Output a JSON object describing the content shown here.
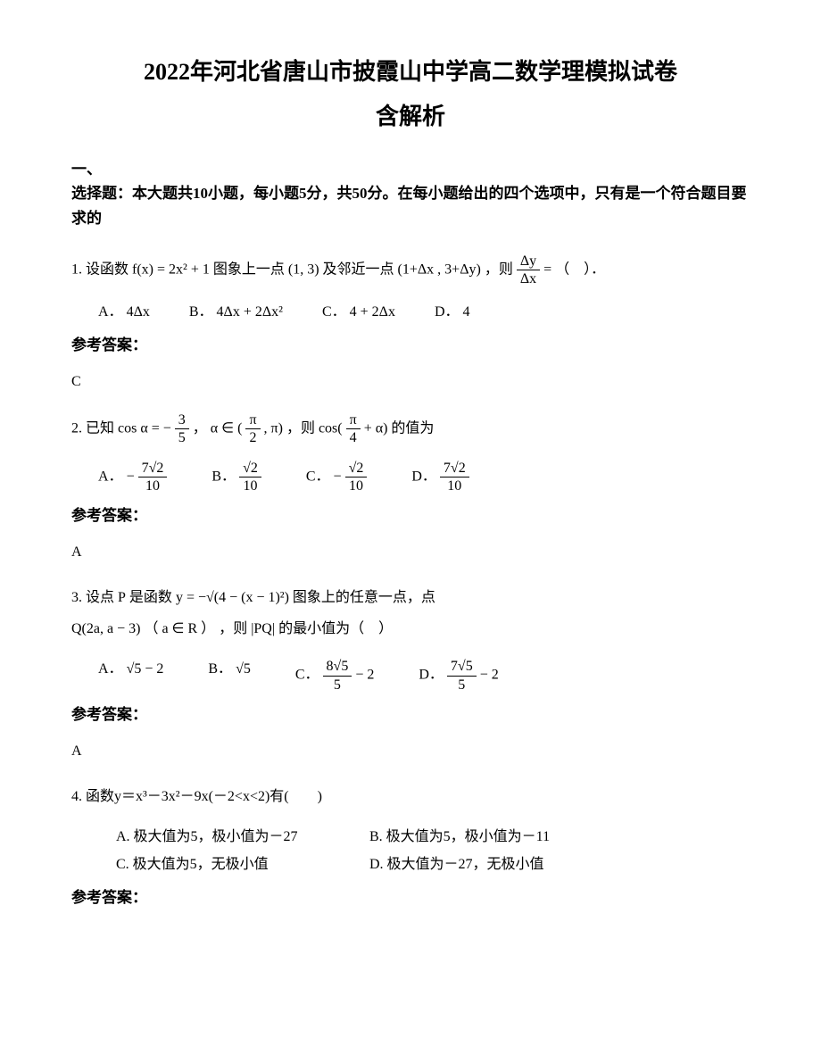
{
  "title_line1": "2022年河北省唐山市披霞山中学高二数学理模拟试卷",
  "title_line2": "含解析",
  "section_header_line1": "一、",
  "section_header_line2": "选择题：本大题共10小题，每小题5分，共50分。在每小题给出的四个选项中，只有是一个符合题目要求的",
  "q1": {
    "prefix": "1. 设函数",
    "func": "f(x) = 2x² + 1",
    "mid1": "图象上一点",
    "point1": "(1, 3)",
    "mid2": "及邻近一点",
    "point2": "(1+Δx , 3+Δy)",
    "mid3": "，则",
    "ratio_num": "Δy",
    "ratio_den": "Δx",
    "equals": " = ",
    "tail": "（　）．",
    "optA_label": "A．",
    "optA": "4Δx",
    "optB_label": "B．",
    "optB": "4Δx + 2Δx²",
    "optC_label": "C．",
    "optC": "4 + 2Δx",
    "optD_label": "D．",
    "optD": "4",
    "answer_label": "参考答案：",
    "answer": "C"
  },
  "q2": {
    "prefix": "2. 已知",
    "expr1_lhs": "cos α = ",
    "expr1_num": "3",
    "expr1_den": "5",
    "expr1_neg": "− ",
    "comma1": "，",
    "expr2": "α ∈ (",
    "expr2_num": "π",
    "expr2_den": "2",
    "expr2_tail": ", π)",
    "comma2": "，则",
    "expr3_lhs": "cos(",
    "expr3_num": "π",
    "expr3_den": "4",
    "expr3_tail": " + α)",
    "tail": "的值为",
    "optA_label": "A．",
    "optA_neg": "− ",
    "optA_num": "7√2",
    "optA_den": "10",
    "optB_label": "B．",
    "optB_num": "√2",
    "optB_den": "10",
    "optC_label": "C．",
    "optC_neg": "− ",
    "optC_num": "√2",
    "optC_den": "10",
    "optD_label": "D．",
    "optD_num": "7√2",
    "optD_den": "10",
    "answer_label": "参考答案：",
    "answer": "A"
  },
  "q3": {
    "prefix": "3. 设点",
    "pvar": "P",
    "mid1": "是函数",
    "func": "y = −√(4 − (x − 1)²)",
    "mid2": " 图象上的任意一点，点",
    "qpoint": "Q(2a, a − 3)",
    "paren_open": "（",
    "avar": "a ∈ R",
    "paren_close": "）",
    "mid3": "，则",
    "pq": "|PQ|",
    "tail": "的最小值为（　）",
    "optA_label": "A．",
    "optA": "√5 − 2",
    "optB_label": "B．",
    "optB": "√5",
    "optC_label": "C．",
    "optC_num": "8√5",
    "optC_den": "5",
    "optC_tail": " − 2",
    "optD_label": "D．",
    "optD_num": "7√5",
    "optD_den": "5",
    "optD_tail": " − 2",
    "answer_label": "参考答案：",
    "answer": "A"
  },
  "q4": {
    "text": "4. 函数y＝x³－3x²－9x(－2<x<2)有(　　)",
    "optA": "A. 极大值为5，极小值为－27",
    "optB": "B. 极大值为5，极小值为－11",
    "optC": "C. 极大值为5，无极小值",
    "optD": "D. 极大值为－27，无极小值",
    "answer_label": "参考答案："
  }
}
